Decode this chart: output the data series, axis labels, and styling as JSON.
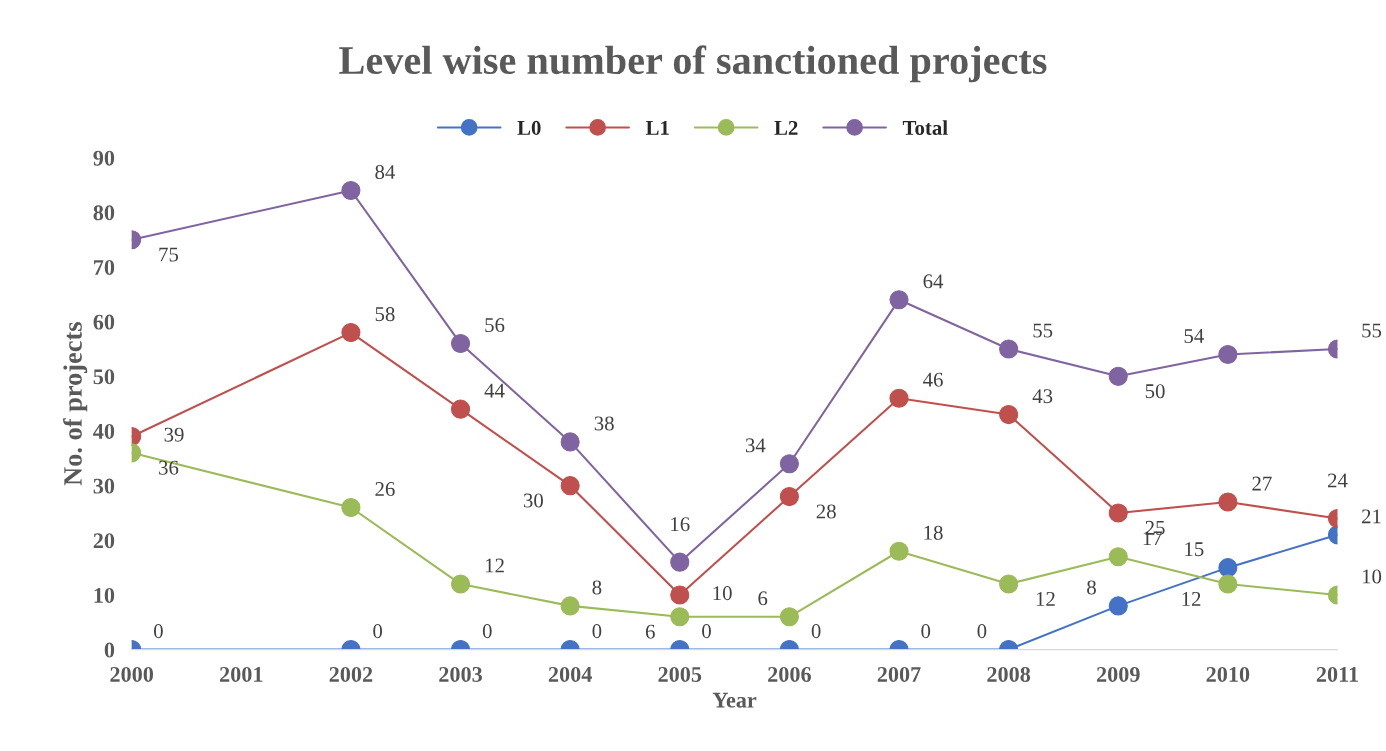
{
  "chart_data": {
    "type": "line",
    "title": "Level wise number of sanctioned projects",
    "xlabel": "Year",
    "ylabel": "No. of projects",
    "x": [
      2000,
      2002,
      2003,
      2004,
      2005,
      2006,
      2007,
      2008,
      2009,
      2010,
      2011
    ],
    "series": [
      {
        "name": "L0",
        "color": "#4472c4",
        "values": [
          0,
          0,
          0,
          0,
          0,
          0,
          0,
          0,
          8,
          15,
          21
        ]
      },
      {
        "name": "L1",
        "color": "#c0504d",
        "values": [
          39,
          58,
          44,
          30,
          10,
          28,
          46,
          43,
          25,
          27,
          24
        ]
      },
      {
        "name": "L2",
        "color": "#9bbb59",
        "values": [
          36,
          26,
          12,
          8,
          6,
          6,
          18,
          12,
          17,
          12,
          10
        ]
      },
      {
        "name": "Total",
        "color": "#8064a2",
        "values": [
          75,
          84,
          56,
          38,
          16,
          34,
          64,
          55,
          50,
          54,
          55
        ]
      }
    ],
    "xlim": [
      2000,
      2011
    ],
    "xticks": [
      2000,
      2001,
      2002,
      2003,
      2004,
      2005,
      2006,
      2007,
      2008,
      2009,
      2010,
      2011
    ],
    "ylim": [
      0,
      90
    ],
    "yticks": [
      0,
      10,
      20,
      30,
      40,
      50,
      60,
      70,
      80,
      90
    ],
    "grid": false,
    "legend": "top",
    "marker": "circle",
    "line_style": "solid",
    "data_labels": true
  }
}
